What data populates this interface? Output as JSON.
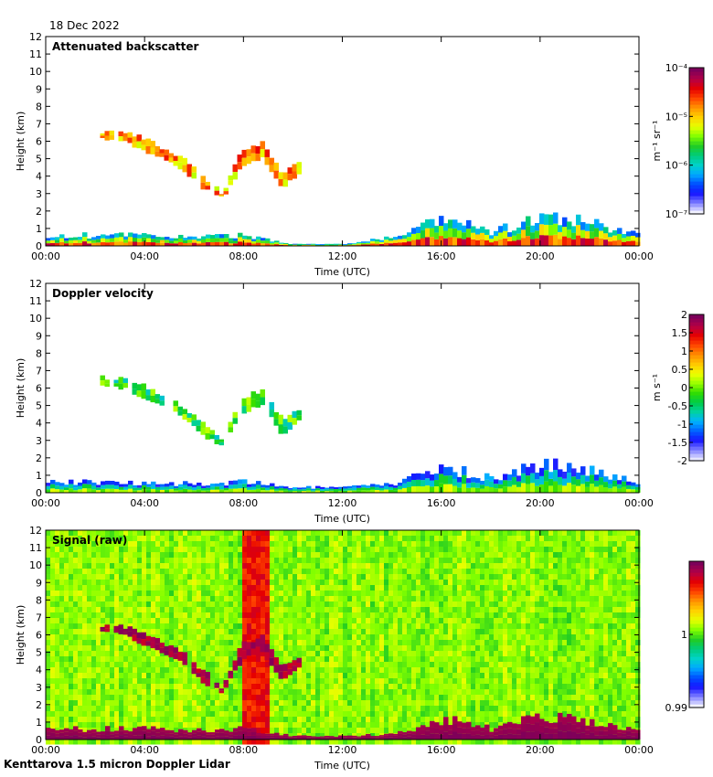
{
  "header": {
    "date": "18 Dec 2022"
  },
  "footer": {
    "caption": "Kenttarova 1.5 micron Doppler Lidar"
  },
  "colors": {
    "frame": "#000000",
    "background": "#ffffff",
    "colormap_backscatter": [
      "#f2f2ff",
      "#7d7dff",
      "#1515ff",
      "#0050ff",
      "#00aaff",
      "#00d2c8",
      "#00cc7a",
      "#22cc22",
      "#7fff00",
      "#e6ff00",
      "#ffd200",
      "#ff9600",
      "#ff4600",
      "#e60000",
      "#b40046",
      "#7d005a"
    ],
    "colormap_velocity": [
      "#e6e6ff",
      "#7d7dff",
      "#1515ff",
      "#0064ff",
      "#00b4ff",
      "#00d2a0",
      "#00cc44",
      "#33dd00",
      "#99ff00",
      "#f0ff00",
      "#ffc800",
      "#ff8c00",
      "#ff4600",
      "#e60000",
      "#b40046",
      "#7d005a"
    ]
  },
  "chart_data": [
    {
      "type": "heatmap",
      "title": "Attenuated backscatter",
      "xlabel": "Time (UTC)",
      "ylabel": "Height (km)",
      "xlim": [
        0,
        24
      ],
      "ylim": [
        0,
        12
      ],
      "x_ticks": [
        "00:00",
        "04:00",
        "08:00",
        "12:00",
        "16:00",
        "20:00",
        "00:00"
      ],
      "y_ticks": [
        "0",
        "1",
        "2",
        "3",
        "4",
        "5",
        "6",
        "7",
        "8",
        "9",
        "10",
        "11",
        "12"
      ],
      "colorbar": {
        "label": "m⁻¹ sr⁻¹",
        "scale": "log",
        "ticks": [
          "10⁻⁷",
          "10⁻⁶",
          "10⁻⁵",
          "10⁻⁴"
        ],
        "range": [
          -7,
          -4
        ]
      },
      "features": [
        {
          "name": "cloud layer",
          "kind": "band",
          "x": [
            2.2,
            10.3
          ],
          "top_km": [
            6.6,
            6.5,
            6.2,
            5.6,
            5.0,
            4.0,
            3.0,
            5.5,
            5.9,
            4.2,
            4.8
          ],
          "bottom_km": [
            6.1,
            6.0,
            5.5,
            5.0,
            4.4,
            3.3,
            2.7,
            4.6,
            5.0,
            3.3,
            4.4
          ],
          "value_range": [
            -5.3,
            -4.4
          ]
        },
        {
          "name": "boundary layer",
          "kind": "ground",
          "x": [
            0,
            24
          ],
          "top_km": [
            0.6,
            0.6,
            0.6,
            0.5,
            0.6,
            0.1,
            0.1,
            0.5,
            1.5,
            0.8,
            1.6,
            1.3,
            0.6
          ],
          "value_range": [
            -6.5,
            -4.2
          ]
        }
      ]
    },
    {
      "type": "heatmap",
      "title": "Doppler velocity",
      "xlabel": "Time (UTC)",
      "ylabel": "Height (km)",
      "xlim": [
        0,
        24
      ],
      "ylim": [
        0,
        12
      ],
      "x_ticks": [
        "00:00",
        "04:00",
        "08:00",
        "12:00",
        "16:00",
        "20:00",
        "00:00"
      ],
      "y_ticks": [
        "0",
        "1",
        "2",
        "3",
        "4",
        "5",
        "6",
        "7",
        "8",
        "9",
        "10",
        "11",
        "12"
      ],
      "colorbar": {
        "label": "m s⁻¹",
        "scale": "linear",
        "ticks": [
          "-2",
          "-1.5",
          "-1",
          "-0.5",
          "0",
          "0.5",
          "1",
          "1.5",
          "2"
        ],
        "range": [
          -2,
          2
        ]
      },
      "features": [
        {
          "name": "cloud layer",
          "kind": "band",
          "x": [
            2.2,
            10.3
          ],
          "top_km": [
            6.6,
            6.5,
            6.2,
            5.6,
            5.0,
            4.0,
            3.0,
            5.5,
            5.9,
            4.2,
            4.8
          ],
          "bottom_km": [
            6.1,
            6.0,
            5.5,
            5.0,
            4.4,
            3.3,
            2.7,
            4.6,
            5.0,
            3.3,
            4.4
          ],
          "value_range": [
            -0.8,
            0.3
          ]
        },
        {
          "name": "boundary layer",
          "kind": "ground",
          "x": [
            0,
            24
          ],
          "top_km": [
            0.6,
            0.6,
            0.6,
            0.5,
            0.6,
            0.3,
            0.3,
            0.5,
            1.5,
            0.8,
            1.6,
            1.3,
            0.6
          ],
          "value_range": [
            -1.6,
            0.4
          ]
        }
      ]
    },
    {
      "type": "heatmap",
      "title": "Signal (raw)",
      "xlabel": "Time (UTC)",
      "ylabel": "Height (km)",
      "xlim": [
        0,
        24
      ],
      "ylim": [
        0,
        12
      ],
      "x_ticks": [
        "00:00",
        "04:00",
        "08:00",
        "12:00",
        "16:00",
        "20:00",
        "00:00"
      ],
      "y_ticks": [
        "0",
        "1",
        "2",
        "3",
        "4",
        "5",
        "6",
        "7",
        "8",
        "9",
        "10",
        "11",
        "12"
      ],
      "colorbar": {
        "label": "",
        "scale": "linear",
        "ticks": [
          "0.99",
          "1"
        ],
        "range": [
          0.99,
          1.01
        ]
      },
      "features": [
        {
          "name": "cloud layer",
          "kind": "band",
          "x": [
            2.2,
            10.3
          ],
          "top_km": [
            6.6,
            6.5,
            6.2,
            5.6,
            5.0,
            4.0,
            3.0,
            5.5,
            5.9,
            4.2,
            4.8
          ],
          "bottom_km": [
            6.1,
            6.0,
            5.5,
            5.0,
            4.4,
            3.3,
            2.7,
            4.6,
            5.0,
            3.3,
            4.4
          ],
          "value_range": [
            1.008,
            1.01
          ]
        },
        {
          "name": "high signal column",
          "kind": "column",
          "x": [
            7.9,
            8.9
          ],
          "value_range": [
            1.006,
            1.008
          ]
        },
        {
          "name": "boundary layer",
          "kind": "ground",
          "x": [
            0,
            24
          ],
          "top_km": [
            0.6,
            0.6,
            0.6,
            0.5,
            0.6,
            0.2,
            0.2,
            0.3,
            1.2,
            0.6,
            1.3,
            1.0,
            0.5
          ],
          "value_range": [
            1.009,
            1.01
          ]
        },
        {
          "name": "background noise",
          "kind": "noise",
          "value_range": [
            0.999,
            1.003
          ]
        }
      ]
    }
  ]
}
